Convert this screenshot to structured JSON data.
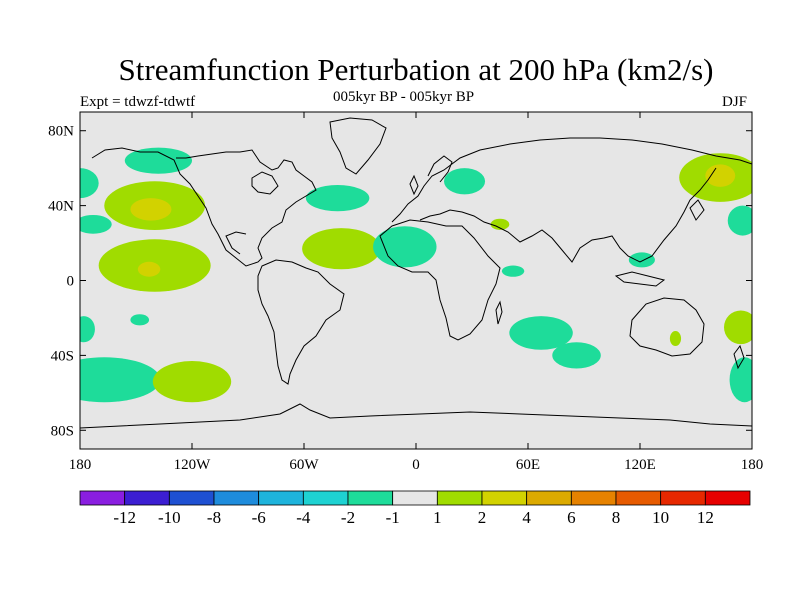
{
  "chart_data": {
    "type": "heatmap",
    "title": "Streamfunction Perturbation at 200 hPa (km2/s)",
    "subtitle": "005kyr BP - 005kyr BP",
    "left_label": "Expt = tdwzf-tdwtf",
    "right_label": "DJF",
    "lon_ticks": [
      {
        "value": -180,
        "label": "180"
      },
      {
        "value": -120,
        "label": "120W"
      },
      {
        "value": -60,
        "label": "60W"
      },
      {
        "value": 0,
        "label": "0"
      },
      {
        "value": 60,
        "label": "60E"
      },
      {
        "value": 120,
        "label": "120E"
      },
      {
        "value": 180,
        "label": "180"
      }
    ],
    "lat_ticks": [
      {
        "value": 80,
        "label": "80N"
      },
      {
        "value": 40,
        "label": "40N"
      },
      {
        "value": 0,
        "label": "0"
      },
      {
        "value": -40,
        "label": "40S"
      },
      {
        "value": -80,
        "label": "80S"
      }
    ],
    "xlim": [
      -180,
      180
    ],
    "ylim": [
      -90,
      90
    ],
    "colorbar": {
      "colors": [
        "#8a1ee0",
        "#3c1ed2",
        "#1e50d2",
        "#1e8cdc",
        "#1eb4dc",
        "#1ed2d2",
        "#1edc9a",
        "#e6e6e6",
        "#a0dc00",
        "#d2d200",
        "#dcaa00",
        "#e68200",
        "#e65a00",
        "#e62800",
        "#e60000"
      ],
      "labels": [
        "-12",
        "-10",
        "-8",
        "-6",
        "-4",
        "-2",
        "-1",
        "1",
        "2",
        "4",
        "6",
        "8",
        "10",
        "12"
      ]
    },
    "regions": [
      {
        "lon": -180,
        "lat": 52,
        "rlon": 10,
        "rlat": 8,
        "level": "-1"
      },
      {
        "lon": -138,
        "lat": 64,
        "rlon": 18,
        "rlat": 7,
        "level": "-1"
      },
      {
        "lon": -140,
        "lat": 40,
        "rlon": 27,
        "rlat": 13,
        "level": "1"
      },
      {
        "lon": -142,
        "lat": 38,
        "rlon": 11,
        "rlat": 6,
        "level": "2"
      },
      {
        "lon": -173,
        "lat": 30,
        "rlon": 10,
        "rlat": 5,
        "level": "-1"
      },
      {
        "lon": -140,
        "lat": 8,
        "rlon": 30,
        "rlat": 14,
        "level": "1"
      },
      {
        "lon": -143,
        "lat": 6,
        "rlon": 6,
        "rlat": 4,
        "level": "2"
      },
      {
        "lon": -148,
        "lat": -21,
        "rlon": 5,
        "rlat": 3,
        "level": "-1"
      },
      {
        "lon": -178,
        "lat": -26,
        "rlon": 6,
        "rlat": 7,
        "level": "-1"
      },
      {
        "lon": -167,
        "lat": -53,
        "rlon": 30,
        "rlat": 12,
        "level": "-1"
      },
      {
        "lon": -120,
        "lat": -54,
        "rlon": 21,
        "rlat": 11,
        "level": "1"
      },
      {
        "lon": -42,
        "lat": 44,
        "rlon": 17,
        "rlat": 7,
        "level": "-1"
      },
      {
        "lon": -40,
        "lat": 17,
        "rlon": 21,
        "rlat": 11,
        "level": "1"
      },
      {
        "lon": -6,
        "lat": 18,
        "rlon": 17,
        "rlat": 11,
        "level": "-1"
      },
      {
        "lon": 26,
        "lat": 53,
        "rlon": 11,
        "rlat": 7,
        "level": "-1"
      },
      {
        "lon": 45,
        "lat": 30,
        "rlon": 5,
        "rlat": 3,
        "level": "1"
      },
      {
        "lon": 52,
        "lat": 5,
        "rlon": 6,
        "rlat": 3,
        "level": "-1"
      },
      {
        "lon": 67,
        "lat": -28,
        "rlon": 17,
        "rlat": 9,
        "level": "-1"
      },
      {
        "lon": 86,
        "lat": -40,
        "rlon": 13,
        "rlat": 7,
        "level": "-1"
      },
      {
        "lon": 163,
        "lat": 55,
        "rlon": 22,
        "rlat": 13,
        "level": "1"
      },
      {
        "lon": 163,
        "lat": 56,
        "rlon": 8,
        "rlat": 6,
        "level": "2"
      },
      {
        "lon": 121,
        "lat": 11,
        "rlon": 7,
        "rlat": 4,
        "level": "-1"
      },
      {
        "lon": 175,
        "lat": 32,
        "rlon": 8,
        "rlat": 8,
        "level": "-1"
      },
      {
        "lon": 174,
        "lat": -25,
        "rlon": 9,
        "rlat": 9,
        "level": "1"
      },
      {
        "lon": 176,
        "lat": -53,
        "rlon": 8,
        "rlat": 12,
        "level": "-1"
      },
      {
        "lon": 139,
        "lat": -31,
        "rlon": 3,
        "rlat": 4,
        "level": "1"
      }
    ]
  }
}
